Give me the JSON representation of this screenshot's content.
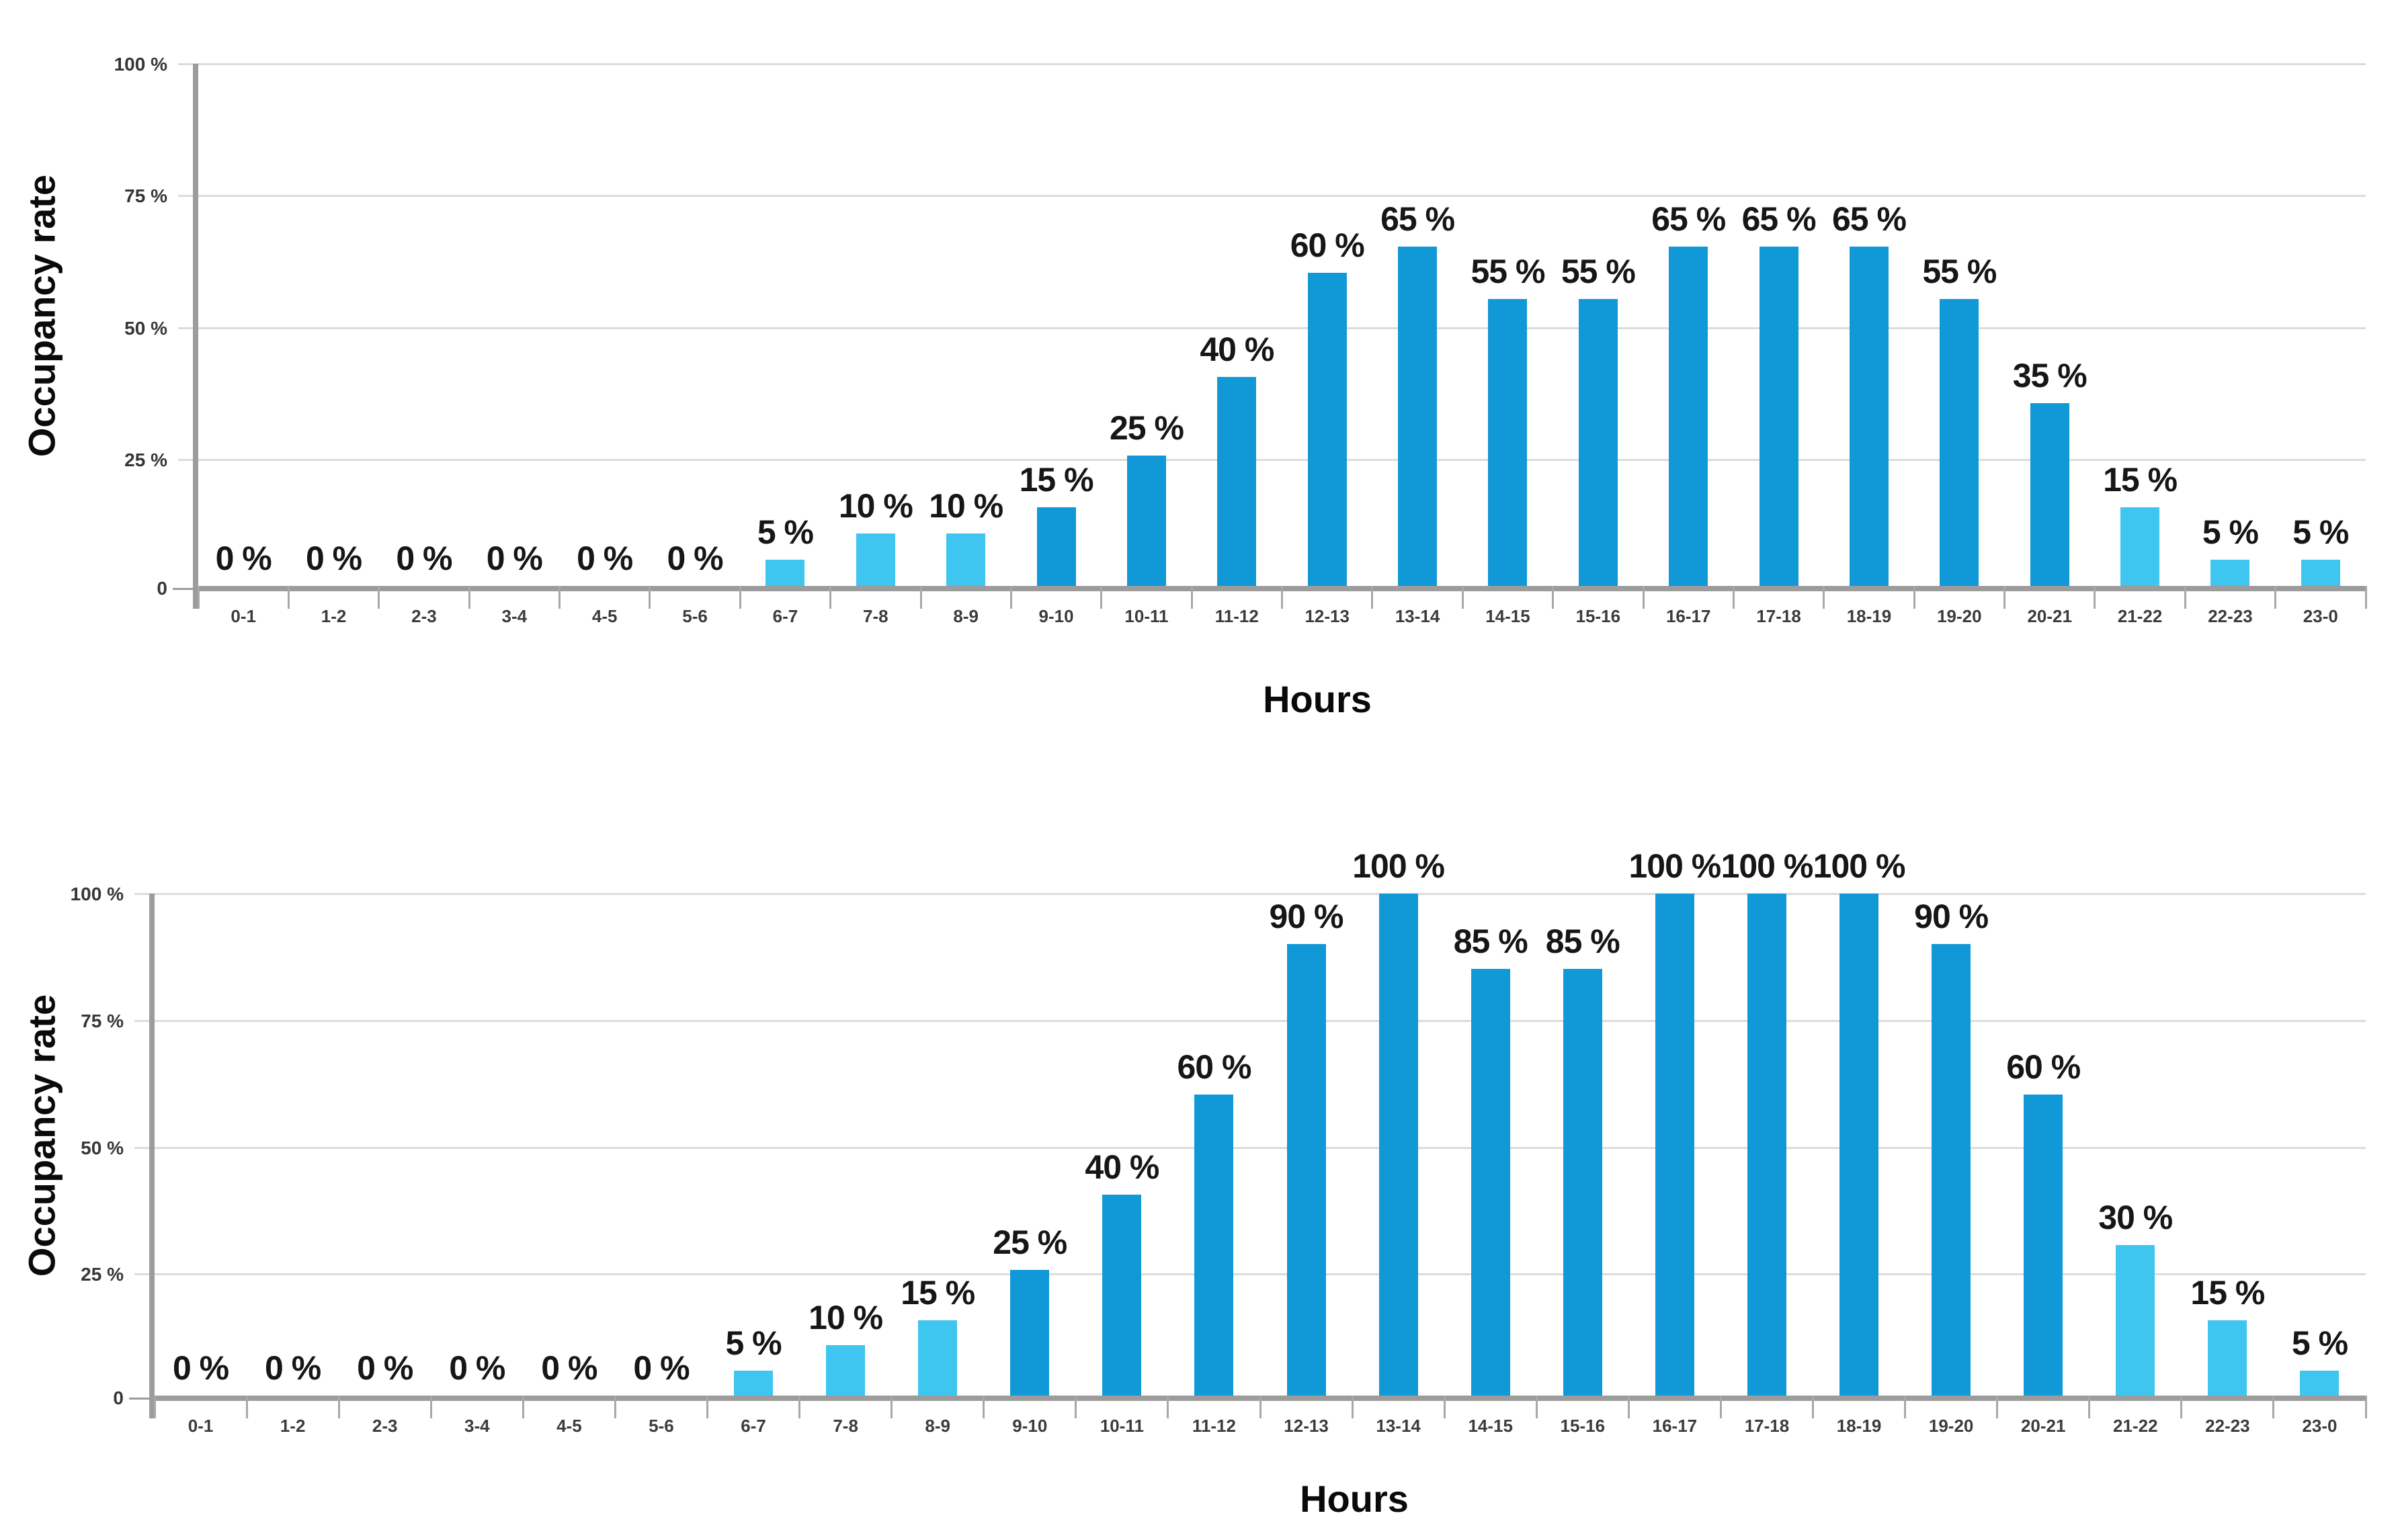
{
  "colors": {
    "bar_dark": "#1099d6",
    "bar_light": "#3ec5f0",
    "gridline": "#dcdcdc",
    "axis": "#9c9c9c",
    "tick": "#a8a8a8",
    "value_label": "#161616",
    "background": "#ffffff"
  },
  "chart_data": [
    {
      "type": "bar",
      "ylabel": "Occupancy rate",
      "xlabel": "Hours",
      "ylim": [
        0,
        100
      ],
      "grid": "horizontal",
      "legend": "none",
      "y_tick_labels": [
        "100 %",
        "75 %",
        "50 %",
        "25 %",
        "0"
      ],
      "categories": [
        "0-1",
        "1-2",
        "2-3",
        "3-4",
        "4-5",
        "5-6",
        "6-7",
        "7-8",
        "8-9",
        "9-10",
        "10-11",
        "11-12",
        "12-13",
        "13-14",
        "14-15",
        "15-16",
        "16-17",
        "17-18",
        "18-19",
        "19-20",
        "20-21",
        "21-22",
        "22-23",
        "23-0"
      ],
      "values": [
        0,
        0,
        0,
        0,
        0,
        0,
        5,
        10,
        10,
        15,
        25,
        40,
        60,
        65,
        55,
        55,
        65,
        65,
        65,
        55,
        35,
        15,
        5,
        5
      ],
      "bar_labels": [
        "0 %",
        "0 %",
        "0 %",
        "0 %",
        "0 %",
        "0 %",
        "5 %",
        "10 %",
        "10 %",
        "15 %",
        "25 %",
        "40 %",
        "60 %",
        "65 %",
        "55 %",
        "55 %",
        "65 %",
        "65 %",
        "65 %",
        "55 %",
        "35 %",
        "15 %",
        "5 %",
        "5 %"
      ],
      "light_bar_indices": [
        6,
        7,
        8,
        21,
        22,
        23
      ]
    },
    {
      "type": "bar",
      "ylabel": "Occupancy rate",
      "xlabel": "Hours",
      "ylim": [
        0,
        100
      ],
      "grid": "horizontal",
      "legend": "none",
      "y_tick_labels": [
        "100 %",
        "75 %",
        "50 %",
        "25 %",
        "0"
      ],
      "categories": [
        "0-1",
        "1-2",
        "2-3",
        "3-4",
        "4-5",
        "5-6",
        "6-7",
        "7-8",
        "8-9",
        "9-10",
        "10-11",
        "11-12",
        "12-13",
        "13-14",
        "14-15",
        "15-16",
        "16-17",
        "17-18",
        "18-19",
        "19-20",
        "20-21",
        "21-22",
        "22-23",
        "23-0"
      ],
      "values": [
        0,
        0,
        0,
        0,
        0,
        0,
        5,
        10,
        15,
        25,
        40,
        60,
        90,
        100,
        85,
        85,
        100,
        100,
        100,
        90,
        60,
        30,
        15,
        5
      ],
      "bar_labels": [
        "0 %",
        "0 %",
        "0 %",
        "0 %",
        "0 %",
        "0 %",
        "5 %",
        "10 %",
        "15 %",
        "25 %",
        "40 %",
        "60 %",
        "90 %",
        "100 %",
        "85 %",
        "85 %",
        "100 %",
        "100 %",
        "100 %",
        "90 %",
        "60 %",
        "30 %",
        "15 %",
        "5 %"
      ],
      "light_bar_indices": [
        6,
        7,
        8,
        21,
        22,
        23
      ]
    }
  ]
}
